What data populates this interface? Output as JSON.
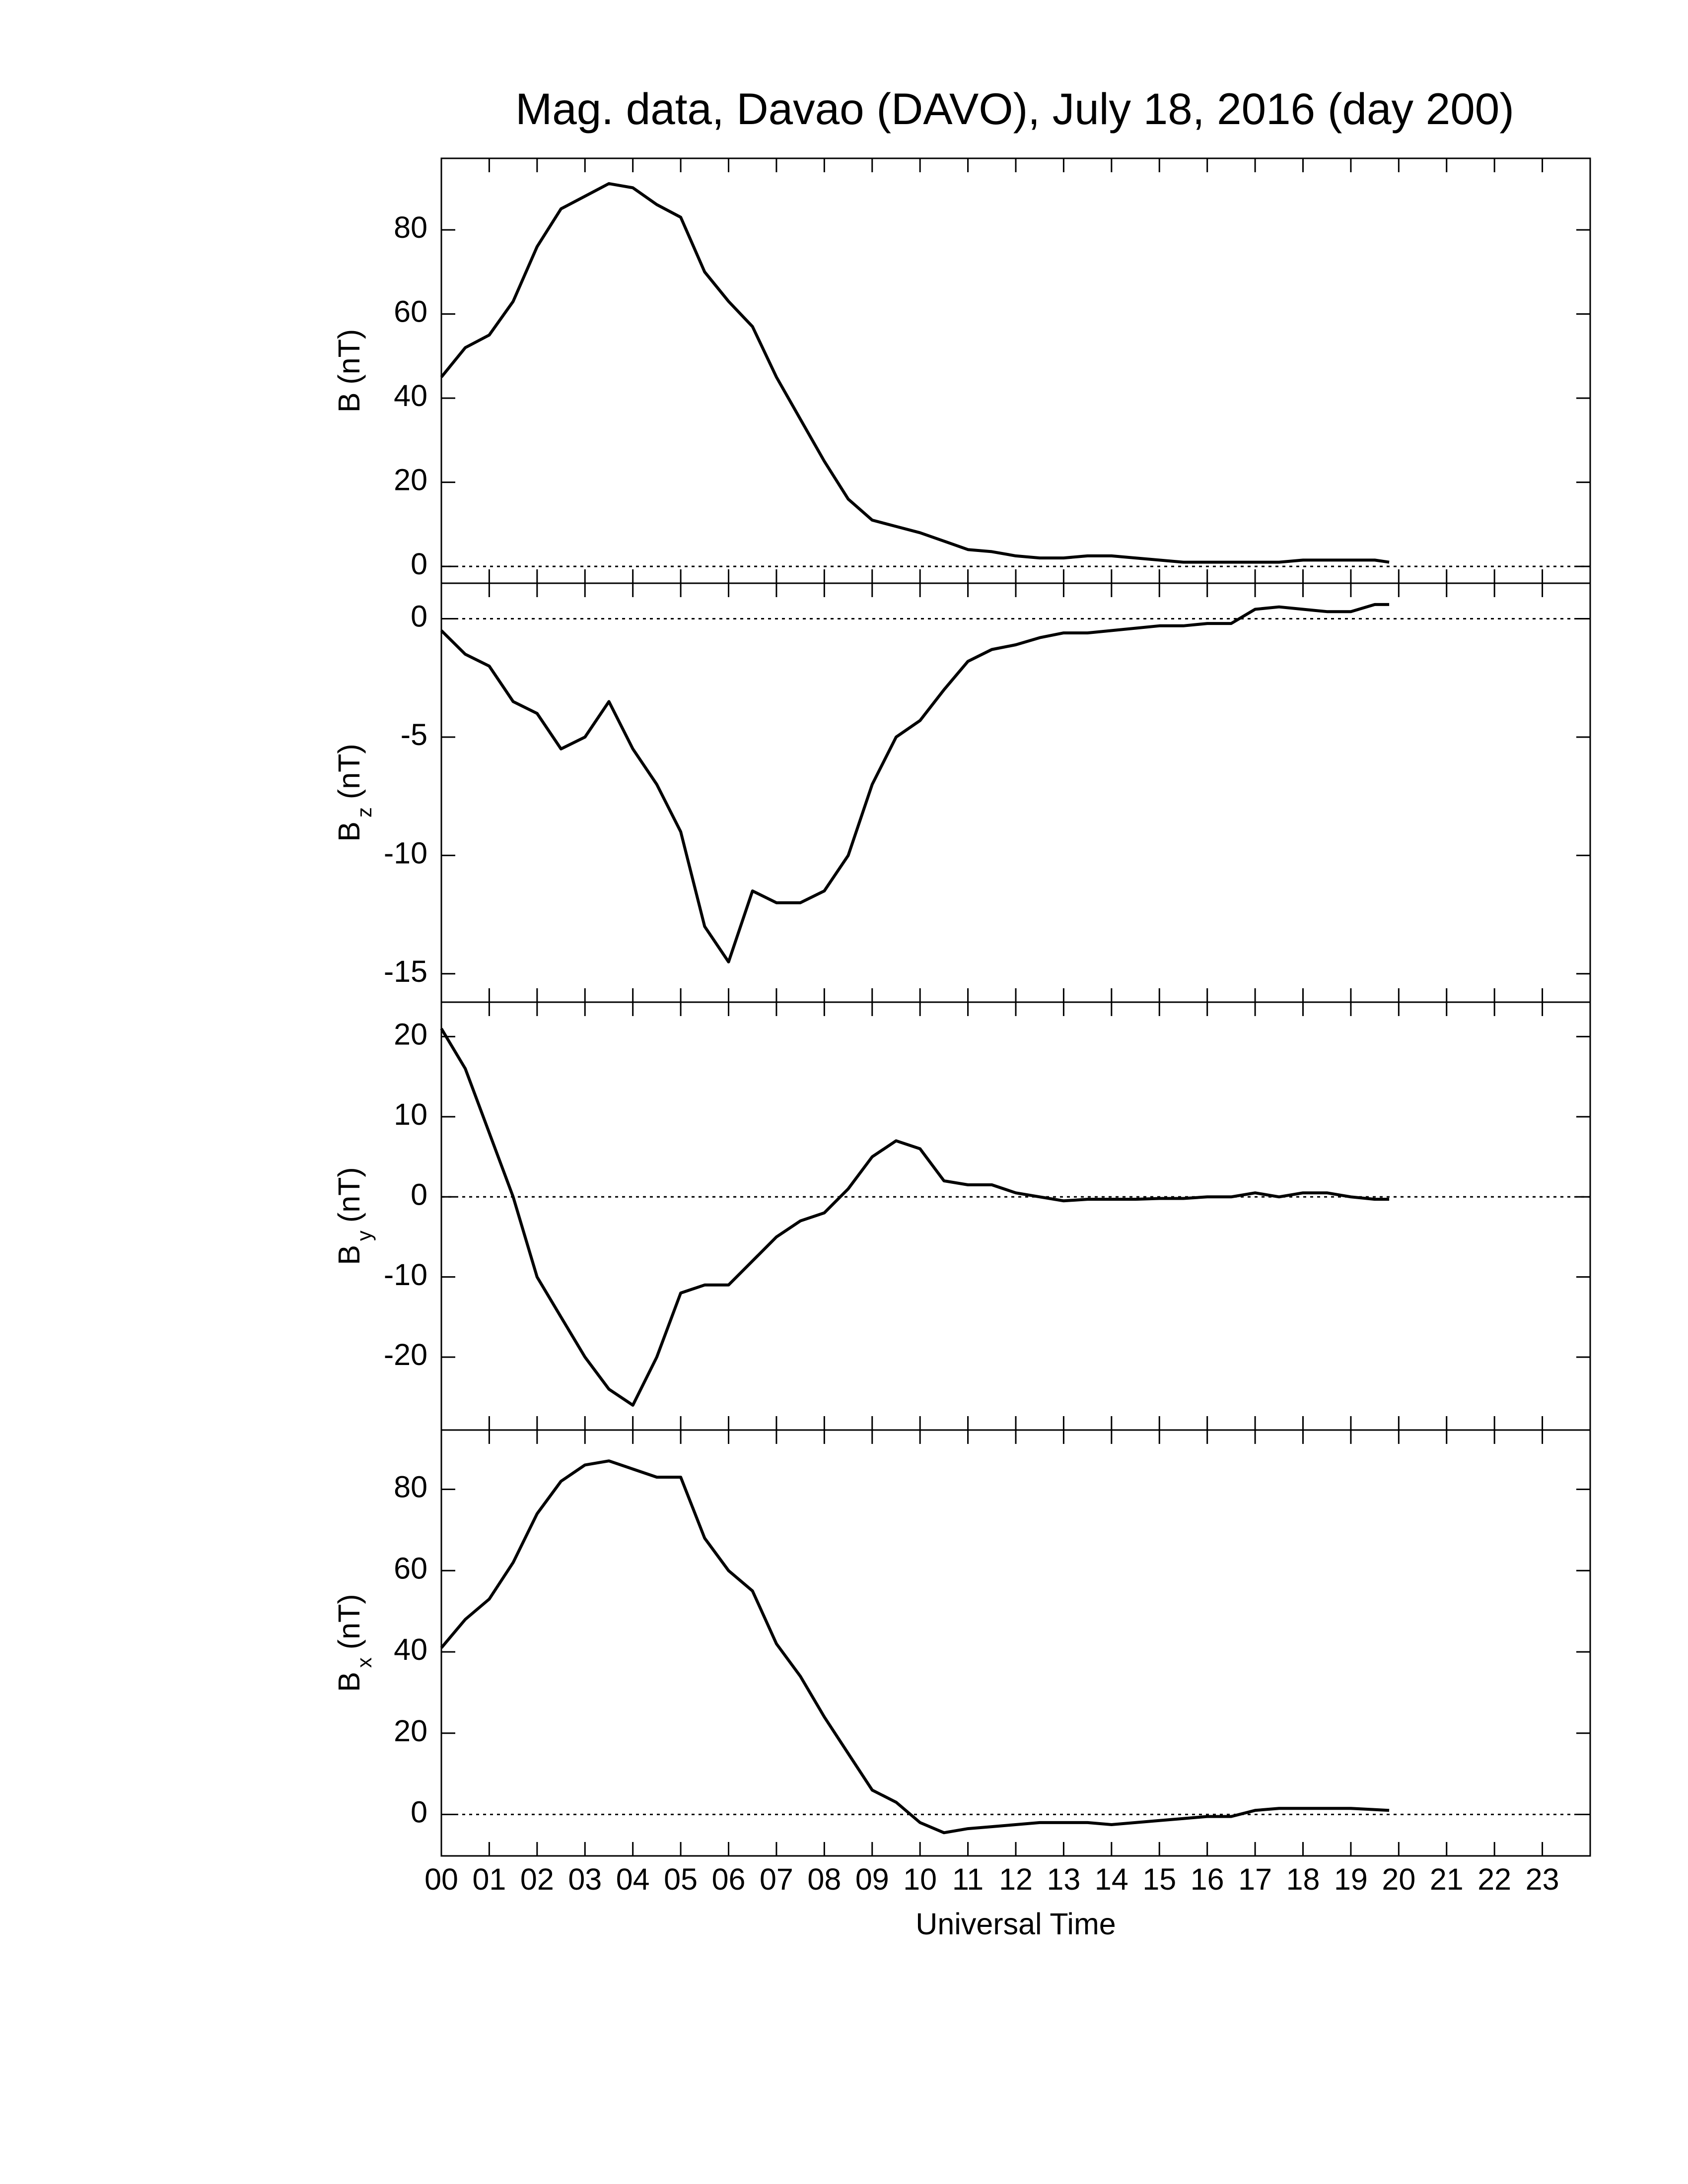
{
  "chart_data": [
    {
      "type": "line",
      "title": "Mag. data, Davao (DAVO), July 18, 2016 (day 200)",
      "ylabel": {
        "main": "B",
        "unit": "(nT)"
      },
      "xlim": [
        0,
        24
      ],
      "ylim": [
        -4,
        97
      ],
      "yticks": [
        0,
        20,
        40,
        60,
        80
      ],
      "hline": 0,
      "color": "#000000",
      "x": [
        0,
        0.5,
        1,
        1.5,
        2,
        2.5,
        3,
        3.5,
        4,
        4.5,
        5,
        5.5,
        6,
        6.5,
        7,
        7.5,
        8,
        8.5,
        9,
        9.5,
        10,
        10.5,
        11,
        11.5,
        12,
        12.5,
        13,
        13.5,
        14,
        14.5,
        15,
        15.5,
        16,
        16.5,
        17,
        17.5,
        18,
        18.5,
        19,
        19.5,
        19.8
      ],
      "values": [
        45,
        52,
        55,
        63,
        76,
        85,
        88,
        91,
        90,
        86,
        83,
        70,
        63,
        57,
        45,
        35,
        25,
        16,
        11,
        9.5,
        8,
        6,
        4,
        3.5,
        2.5,
        2,
        2,
        2.5,
        2.5,
        2,
        1.5,
        1,
        1,
        1,
        1,
        1,
        1.5,
        1.5,
        1.5,
        1.5,
        1
      ]
    },
    {
      "type": "line",
      "ylabel": {
        "main": "B",
        "sub": "z",
        "unit": "(nT)"
      },
      "xlim": [
        0,
        24
      ],
      "ylim": [
        -16.2,
        1.5
      ],
      "yticks": [
        -15,
        -10,
        -5,
        0
      ],
      "hline": 0,
      "color": "#000000",
      "x": [
        0,
        0.5,
        1,
        1.5,
        2,
        2.5,
        3,
        3.5,
        4,
        4.5,
        5,
        5.5,
        6,
        6.5,
        7,
        7.5,
        8,
        8.5,
        9,
        9.5,
        10,
        10.5,
        11,
        11.5,
        12,
        12.5,
        13,
        13.5,
        14,
        14.5,
        15,
        15.5,
        16,
        16.5,
        17,
        17.5,
        18,
        18.5,
        19,
        19.5,
        19.8
      ],
      "values": [
        -0.5,
        -1.5,
        -2,
        -3.5,
        -4,
        -5.5,
        -5,
        -3.5,
        -5.5,
        -7,
        -9,
        -13,
        -14.5,
        -11.5,
        -12,
        -12,
        -11.5,
        -10,
        -7,
        -5,
        -4.3,
        -3,
        -1.8,
        -1.3,
        -1.1,
        -0.8,
        -0.6,
        -0.6,
        -0.5,
        -0.4,
        -0.3,
        -0.3,
        -0.2,
        -0.2,
        0.4,
        0.5,
        0.4,
        0.3,
        0.3,
        0.6,
        0.6
      ]
    },
    {
      "type": "line",
      "ylabel": {
        "main": "B",
        "sub": "y",
        "unit": "(nT)"
      },
      "xlim": [
        0,
        24
      ],
      "ylim": [
        -29.1,
        24.3
      ],
      "yticks": [
        -20,
        -10,
        0,
        10,
        20
      ],
      "hline": 0,
      "color": "#000000",
      "x": [
        0,
        0.5,
        1,
        1.5,
        2,
        2.5,
        3,
        3.5,
        4,
        4.5,
        5,
        5.5,
        6,
        6.5,
        7,
        7.5,
        8,
        8.5,
        9,
        9.5,
        10,
        10.5,
        11,
        11.5,
        12,
        12.5,
        13,
        13.5,
        14,
        14.5,
        15,
        15.5,
        16,
        16.5,
        17,
        17.5,
        18,
        18.5,
        19,
        19.5,
        19.8
      ],
      "values": [
        21,
        16,
        8,
        0,
        -10,
        -15,
        -20,
        -24,
        -26,
        -20,
        -12,
        -11,
        -11,
        -8,
        -5,
        -3,
        -2,
        1,
        5,
        7,
        6,
        2,
        1.5,
        1.5,
        0.5,
        0,
        -0.5,
        -0.3,
        -0.3,
        -0.3,
        -0.2,
        -0.2,
        0,
        0,
        0.5,
        0,
        0.5,
        0.5,
        0,
        -0.3,
        -0.3
      ]
    },
    {
      "type": "line",
      "ylabel": {
        "main": "B",
        "sub": "x",
        "unit": "(nT)"
      },
      "xlabel": "Universal Time",
      "xlim": [
        0,
        24
      ],
      "ylim": [
        -10.2,
        94.6
      ],
      "yticks": [
        0,
        20,
        40,
        60,
        80
      ],
      "hline": 0,
      "color": "#000000",
      "xticks": [
        {
          "value": 0,
          "label": "00"
        },
        {
          "value": 1,
          "label": "01"
        },
        {
          "value": 2,
          "label": "02"
        },
        {
          "value": 3,
          "label": "03"
        },
        {
          "value": 4,
          "label": "04"
        },
        {
          "value": 5,
          "label": "05"
        },
        {
          "value": 6,
          "label": "06"
        },
        {
          "value": 7,
          "label": "07"
        },
        {
          "value": 8,
          "label": "08"
        },
        {
          "value": 9,
          "label": "09"
        },
        10,
        11,
        12,
        13,
        14,
        15,
        16,
        17,
        18,
        19,
        20,
        21,
        22,
        23
      ],
      "x": [
        0,
        0.5,
        1,
        1.5,
        2,
        2.5,
        3,
        3.5,
        4,
        4.5,
        5,
        5.5,
        6,
        6.5,
        7,
        7.5,
        8,
        8.5,
        9,
        9.5,
        10,
        10.5,
        11,
        11.5,
        12,
        12.5,
        13,
        13.5,
        14,
        14.5,
        15,
        15.5,
        16,
        16.5,
        17,
        17.5,
        18,
        18.5,
        19,
        19.5,
        19.8
      ],
      "values": [
        41,
        48,
        53,
        62,
        74,
        82,
        86,
        87,
        85,
        83,
        83,
        68,
        60,
        55,
        42,
        34,
        24,
        15,
        6,
        3,
        -2,
        -4.5,
        -3.5,
        -3,
        -2.5,
        -2,
        -2,
        -2,
        -2.5,
        -2,
        -1.5,
        -1,
        -0.5,
        -0.5,
        1,
        1.5,
        1.5,
        1.5,
        1.5,
        1.2,
        1
      ]
    }
  ]
}
